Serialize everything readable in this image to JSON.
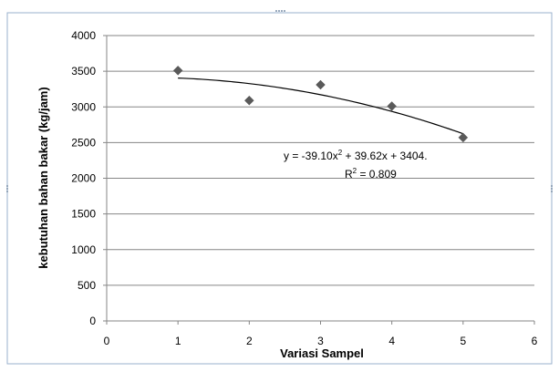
{
  "chart_data": {
    "type": "scatter",
    "xlabel": "Variasi Sampel",
    "ylabel": "kebutuhan bahan bakar (kg/jam)",
    "xlim": [
      0,
      6
    ],
    "ylim": [
      0,
      4000
    ],
    "x_ticks": [
      0,
      1,
      2,
      3,
      4,
      5,
      6
    ],
    "y_ticks": [
      0,
      500,
      1000,
      1500,
      2000,
      2500,
      3000,
      3500,
      4000
    ],
    "grid": "horizontal",
    "series": [
      {
        "marker": "diamond",
        "color": "#5a5a5a",
        "x": [
          1,
          2,
          3,
          4,
          5
        ],
        "y": [
          3510,
          3090,
          3310,
          3010,
          2570
        ]
      }
    ],
    "trendline": {
      "type": "polynomial-2",
      "color": "#000000",
      "coefficients": [
        -39.1,
        39.62,
        3404
      ],
      "x_range": [
        1,
        5
      ]
    },
    "annotations": {
      "equation_prefix": "y = -39.10x",
      "equation_suffix": " + 39.62x + 3404.",
      "r2_prefix": "R",
      "r2_suffix": " = 0.809",
      "superscript": "2"
    }
  }
}
